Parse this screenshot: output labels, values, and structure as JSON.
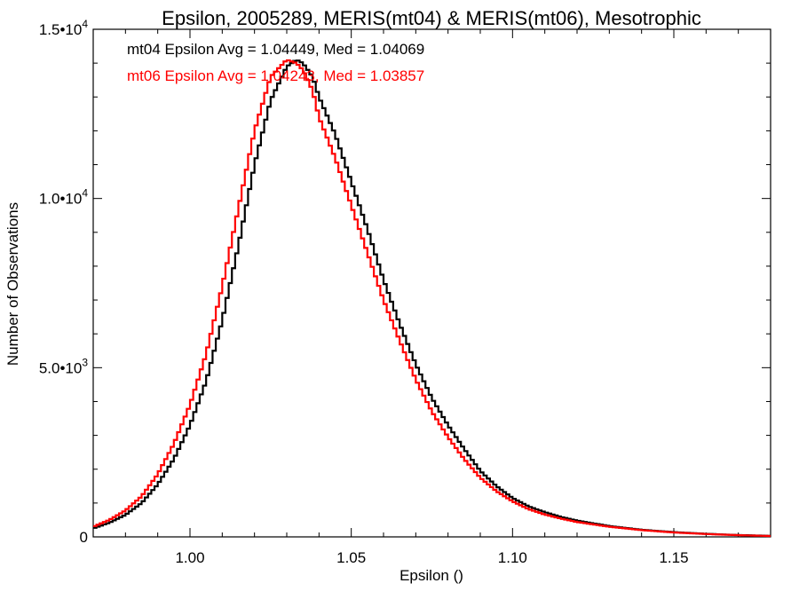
{
  "chart_data": {
    "type": "line",
    "title": "Epsilon, 2005289, MERIS(mt04) & MERIS(mt06), Mesotrophic",
    "xlabel": "Epsilon ()",
    "ylabel": "Number of Observations",
    "xlim": [
      0.97,
      1.18
    ],
    "ylim": [
      0,
      15000
    ],
    "x_ticks": [
      {
        "value": 1.0,
        "label": "1.00"
      },
      {
        "value": 1.05,
        "label": "1.05"
      },
      {
        "value": 1.1,
        "label": "1.10"
      },
      {
        "value": 1.15,
        "label": "1.15"
      }
    ],
    "y_ticks": [
      {
        "value": 0,
        "mant": "0",
        "exp": ""
      },
      {
        "value": 5000,
        "mant": "5.0•10",
        "exp": "3"
      },
      {
        "value": 10000,
        "mant": "1.0•10",
        "exp": "4"
      },
      {
        "value": 15000,
        "mant": "1.5•10",
        "exp": "4"
      }
    ],
    "grid": false,
    "legend": "top-left",
    "annotations": [
      {
        "text": "mt04 Epsilon Avg = 1.04449, Med = 1.04069",
        "color": "#000000"
      },
      {
        "text": "mt06 Epsilon Avg = 1.04243, Med = 1.03857",
        "color": "#ff0000"
      }
    ],
    "series": [
      {
        "color": "#000000",
        "x": [
          0.97,
          0.975,
          0.98,
          0.985,
          0.99,
          0.995,
          1.0,
          1.005,
          1.01,
          1.015,
          1.02,
          1.025,
          1.03,
          1.033,
          1.035,
          1.038,
          1.04,
          1.045,
          1.05,
          1.055,
          1.06,
          1.065,
          1.07,
          1.075,
          1.08,
          1.085,
          1.09,
          1.095,
          1.1,
          1.105,
          1.11,
          1.115,
          1.12,
          1.13,
          1.14,
          1.15,
          1.16,
          1.17,
          1.18
        ],
        "y": [
          250,
          420,
          650,
          1000,
          1550,
          2300,
          3300,
          4600,
          6400,
          8600,
          11000,
          12900,
          13900,
          14100,
          14000,
          13600,
          13000,
          11900,
          10500,
          9100,
          7600,
          6300,
          5100,
          4100,
          3300,
          2600,
          1950,
          1500,
          1150,
          900,
          730,
          590,
          480,
          320,
          210,
          140,
          90,
          55,
          30
        ]
      },
      {
        "color": "#ff0000",
        "x": [
          0.97,
          0.975,
          0.98,
          0.985,
          0.99,
          0.995,
          1.0,
          1.005,
          1.01,
          1.015,
          1.02,
          1.025,
          1.03,
          1.033,
          1.035,
          1.038,
          1.04,
          1.045,
          1.05,
          1.055,
          1.06,
          1.065,
          1.07,
          1.075,
          1.08,
          1.085,
          1.09,
          1.095,
          1.1,
          1.105,
          1.11,
          1.115,
          1.12,
          1.13,
          1.14,
          1.15,
          1.16,
          1.17,
          1.18
        ],
        "y": [
          300,
          500,
          780,
          1200,
          1850,
          2750,
          3900,
          5400,
          7400,
          9700,
          12000,
          13600,
          14100,
          14000,
          13800,
          13200,
          12400,
          11200,
          9800,
          8400,
          7000,
          5800,
          4650,
          3700,
          2950,
          2300,
          1750,
          1350,
          1050,
          820,
          660,
          540,
          440,
          300,
          200,
          130,
          85,
          50,
          25
        ]
      }
    ]
  }
}
